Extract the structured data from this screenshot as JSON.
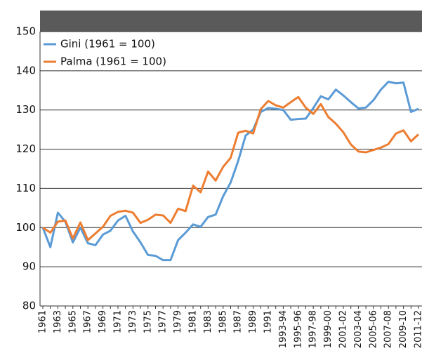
{
  "chart_data": {
    "type": "line",
    "categories": [
      "1961",
      null,
      "1963",
      null,
      "1965",
      null,
      "1967",
      null,
      "1969",
      null,
      "1971",
      null,
      "1973",
      null,
      "1975",
      null,
      "1977",
      null,
      "1979",
      null,
      "1981",
      null,
      "1983",
      null,
      "1985",
      null,
      "1987",
      null,
      "1989",
      null,
      "1991",
      null,
      "1993-94",
      null,
      "1995-96",
      null,
      "1997-98",
      null,
      "1999-00",
      null,
      "2001-02",
      null,
      "2003-04",
      null,
      "2005-06",
      null,
      "2007-08",
      null,
      "2009-10",
      null,
      "2011-12"
    ],
    "series": [
      {
        "name": "Gini (1961 = 100)",
        "color": "#5b9bd5",
        "values": [
          100,
          95,
          103.8,
          101.5,
          96.2,
          100,
          96,
          95.5,
          98.2,
          99.2,
          101.8,
          103,
          99,
          96.2,
          93,
          92.8,
          91.7,
          91.7,
          96.8,
          98.7,
          100.8,
          100.2,
          102.7,
          103.3,
          108,
          111.5,
          117,
          123.5,
          125,
          129.5,
          130.5,
          130.3,
          130,
          127.5,
          127.7,
          127.8,
          130.5,
          133.5,
          132.7,
          135.2,
          133.7,
          132,
          130.4,
          130.6,
          132.5,
          135.2,
          137.2,
          136.8,
          137,
          129.5,
          130.3
        ]
      },
      {
        "name": "Palma (1961 = 100)",
        "color": "#ed7d31",
        "values": [
          100,
          98.7,
          101.5,
          101.8,
          97.2,
          101.3,
          96.8,
          98.5,
          100.2,
          103,
          104,
          104.3,
          103.8,
          101.2,
          102,
          103.3,
          103.1,
          101.2,
          104.8,
          104.2,
          110.7,
          109,
          114.3,
          112,
          115.5,
          117.8,
          124.2,
          124.7,
          124,
          130.2,
          132.3,
          131.2,
          130.6,
          132,
          133.3,
          130.6,
          129,
          131.5,
          128.2,
          126.5,
          124.3,
          121.2,
          119.4,
          119.2,
          119.8,
          120.4,
          121.3,
          124,
          124.8,
          122,
          123.8
        ]
      }
    ],
    "ylim": [
      80,
      150
    ],
    "yticks": [
      80,
      90,
      100,
      110,
      120,
      130,
      140,
      150
    ],
    "grid": true,
    "legend": "top-left"
  }
}
